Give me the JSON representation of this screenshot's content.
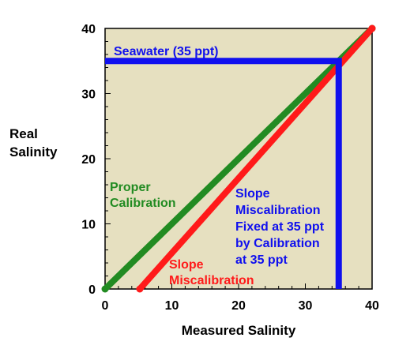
{
  "chart_data": {
    "type": "line",
    "title": "",
    "xlabel": "Measured Salinity",
    "ylabel": [
      "Real",
      "Salinity"
    ],
    "xlim": [
      0,
      40
    ],
    "ylim": [
      0,
      40
    ],
    "x_ticks": [
      "0",
      "10",
      "20",
      "30",
      "40"
    ],
    "y_ticks": [
      "0",
      "10",
      "20",
      "30",
      "40"
    ],
    "grid": false,
    "plot_background": "#e6e0c0",
    "series": [
      {
        "color": "#228b22",
        "points": [
          [
            0,
            0
          ],
          [
            40,
            40
          ]
        ]
      },
      {
        "color": "#ff1a1a",
        "points": [
          [
            5.2,
            0
          ],
          [
            40,
            40
          ]
        ]
      },
      {
        "color": "#1010ee",
        "points": [
          [
            0,
            35
          ],
          [
            35,
            35
          ],
          [
            35,
            0
          ]
        ]
      }
    ],
    "annotations": {
      "seawater": "Seawater (35 ppt)",
      "proper": [
        "Proper",
        "Calibration"
      ],
      "slope_red": [
        "Slope",
        "Miscalibration"
      ],
      "slope_blue": [
        "Slope",
        "Miscalibration",
        "Fixed at 35 ppt",
        "by Calibration",
        "at 35 ppt"
      ]
    },
    "annotation_colors": {
      "seawater": "#1010ee",
      "proper": "#228b22",
      "slope_red": "#ff1a1a",
      "slope_blue": "#1010ee"
    }
  }
}
